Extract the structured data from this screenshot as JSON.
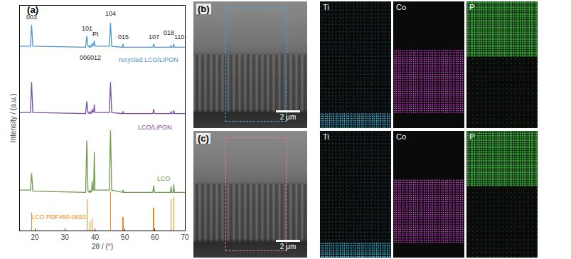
{
  "chart_data": {
    "type": "line",
    "title": "(a)",
    "x_label": "2θ / (°)",
    "y_label": "Intensity / (a.u.)",
    "xlim": [
      15,
      70
    ],
    "xticks": [
      20,
      30,
      40,
      50,
      60,
      70
    ],
    "ylim": [
      0,
      100
    ],
    "tick_labels": "x",
    "grid": false,
    "x": [
      15,
      18.5,
      18.9,
      19.3,
      36.9,
      37.3,
      37.7,
      38.2,
      38.4,
      38.6,
      38.9,
      39.1,
      39.3,
      39.6,
      39.8,
      40.0,
      44.8,
      45.2,
      45.6,
      49.2,
      49.4,
      49.6,
      59.3,
      59.6,
      59.9,
      65.2,
      65.4,
      65.6,
      66.1,
      66.3,
      66.5,
      70
    ],
    "series": [
      {
        "name": "recycled LCO/LiPON",
        "color": "#4f93d2",
        "values": [
          82,
          82,
          91.5,
          82,
          81.5,
          86.5,
          82,
          81.5,
          82.5,
          81.5,
          82,
          83.5,
          82,
          82.5,
          84.5,
          82,
          82,
          92.5,
          82,
          81.5,
          83,
          81.5,
          81.5,
          83,
          81.5,
          81.5,
          82.5,
          81.5,
          81.5,
          83,
          81.5,
          81.5
        ]
      },
      {
        "name": "LCO/LiPON",
        "color": "#7a4ea3",
        "values": [
          52.5,
          52.5,
          66,
          52.5,
          52,
          57.5,
          52.5,
          52,
          53,
          52,
          52.5,
          54,
          52.5,
          53,
          56,
          52.5,
          52.5,
          66,
          52.5,
          52,
          53,
          52,
          52,
          54,
          52,
          52,
          53,
          52,
          52,
          53.5,
          52,
          52
        ]
      },
      {
        "name": "LCO",
        "color": "#6b9a4c",
        "values": [
          18,
          18,
          25.5,
          17.5,
          17,
          40,
          17.5,
          17,
          18,
          17,
          17.5,
          22,
          18,
          18,
          35,
          18,
          18,
          44.5,
          18,
          17,
          18,
          17,
          17,
          20,
          17,
          17,
          19.5,
          17,
          17,
          20.5,
          17,
          17
        ]
      },
      {
        "name": "LCO PDF#50-0653",
        "color": "#f28a1e",
        "type": "bar",
        "x": [
          18.9,
          37.4,
          38.4,
          39.1,
          45.2,
          49.4,
          59.6,
          65.4,
          66.3
        ],
        "values": [
          8,
          14,
          4,
          5,
          17.5,
          6,
          10,
          14,
          15
        ]
      }
    ],
    "annotations": [
      {
        "text": "003",
        "x": 18.9,
        "y": 95
      },
      {
        "text": "101",
        "x": 37.3,
        "y": 90
      },
      {
        "text": "Pt",
        "x": 40.3,
        "y": 87.5
      },
      {
        "text": "104",
        "x": 45.2,
        "y": 96.5
      },
      {
        "text": "006",
        "x": 36.8,
        "y": 77
      },
      {
        "text": "012",
        "x": 40.3,
        "y": 77
      },
      {
        "text": "015",
        "x": 49.4,
        "y": 86
      },
      {
        "text": "107",
        "x": 59.6,
        "y": 86
      },
      {
        "text": "018",
        "x": 64.6,
        "y": 88
      },
      {
        "text": "110",
        "x": 68,
        "y": 86
      },
      {
        "text": "recycled LCO/LiPON",
        "x": 58,
        "y": 76
      },
      {
        "text": "LCO/LiPON",
        "x": 60,
        "y": 46
      },
      {
        "text": "LCO",
        "x": 63,
        "y": 23
      },
      {
        "text": "LCO PDF#50-0653",
        "x": 28,
        "y": 6
      }
    ]
  },
  "panels": [
    {
      "label": "(b)",
      "scale_bar": "2 μm",
      "color": "#3fa9d8",
      "maps": [
        {
          "element": "Ti",
          "color": "#3fb8dc"
        },
        {
          "element": "Co",
          "color": "#c33fc3"
        },
        {
          "element": "P",
          "color": "#3fcf3f"
        }
      ]
    },
    {
      "label": "(c)",
      "scale_bar": "2 μm",
      "color": "#e07ab0",
      "maps": [
        {
          "element": "Ti",
          "color": "#3fb8dc"
        },
        {
          "element": "Co",
          "color": "#c33fc3"
        },
        {
          "element": "P",
          "color": "#3fcf3f"
        }
      ]
    }
  ]
}
